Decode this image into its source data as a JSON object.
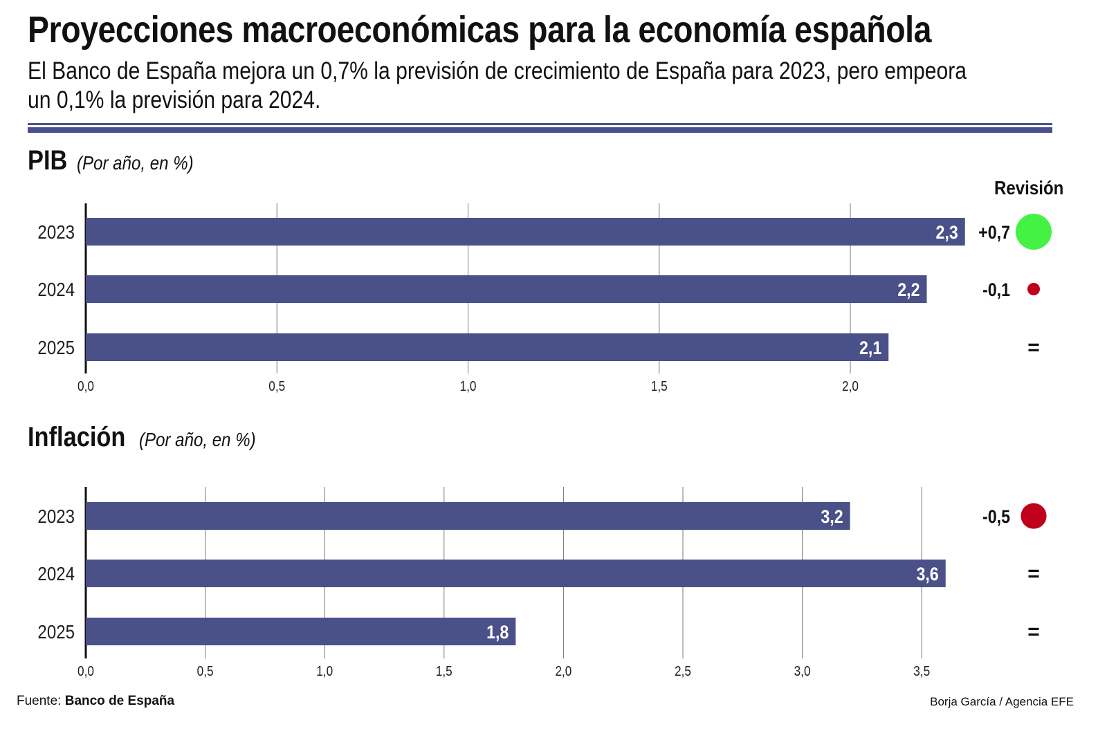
{
  "title": "Proyecciones macroeconómicas para la economía española",
  "subtitle": "El Banco de España mejora un 0,7% la previsión de crecimiento de España para 2023, pero empeora un 0,1% la previsión para 2024.",
  "revision_header": "Revisión",
  "colors": {
    "bar": "#4a5088",
    "up": "#44f244",
    "down": "#c0001a",
    "rule": "#4a5088"
  },
  "chart_data": [
    {
      "type": "bar",
      "orientation": "horizontal",
      "title": "PIB",
      "unit_note": "(Por año, en %)",
      "categories": [
        "2023",
        "2024",
        "2025"
      ],
      "values": [
        2.3,
        2.2,
        2.1
      ],
      "data_labels": [
        "2,3",
        "2,2",
        "2,1"
      ],
      "xlim": [
        0,
        2.3
      ],
      "xticks": [
        0,
        0.5,
        1.0,
        1.5,
        2.0
      ],
      "xtick_labels": [
        "0,0",
        "0,5",
        "1,0",
        "1,5",
        "2,0"
      ],
      "grid": true,
      "revisions": [
        {
          "label": "+0,7",
          "value": 0.7,
          "direction": "up"
        },
        {
          "label": "-0,1",
          "value": -0.1,
          "direction": "down"
        },
        {
          "label": "=",
          "value": 0,
          "direction": "none"
        }
      ]
    },
    {
      "type": "bar",
      "orientation": "horizontal",
      "title": "Inflación",
      "unit_note": "(Por año, en %)",
      "categories": [
        "2023",
        "2024",
        "2025"
      ],
      "values": [
        3.2,
        3.6,
        1.8
      ],
      "data_labels": [
        "3,2",
        "3,6",
        "1,8"
      ],
      "xlim": [
        0,
        3.6
      ],
      "xticks": [
        0,
        0.5,
        1.0,
        1.5,
        2.0,
        2.5,
        3.0,
        3.5
      ],
      "xtick_labels": [
        "0,0",
        "0,5",
        "1,0",
        "1,5",
        "2,0",
        "2,5",
        "3,0",
        "3,5"
      ],
      "grid": true,
      "revisions": [
        {
          "label": "-0,5",
          "value": -0.5,
          "direction": "down"
        },
        {
          "label": "=",
          "value": 0,
          "direction": "none"
        },
        {
          "label": "=",
          "value": 0,
          "direction": "none"
        }
      ]
    }
  ],
  "footer": {
    "source_prefix": "Fuente:",
    "source": "Banco de España",
    "credit": "Borja García / Agencia EFE"
  }
}
